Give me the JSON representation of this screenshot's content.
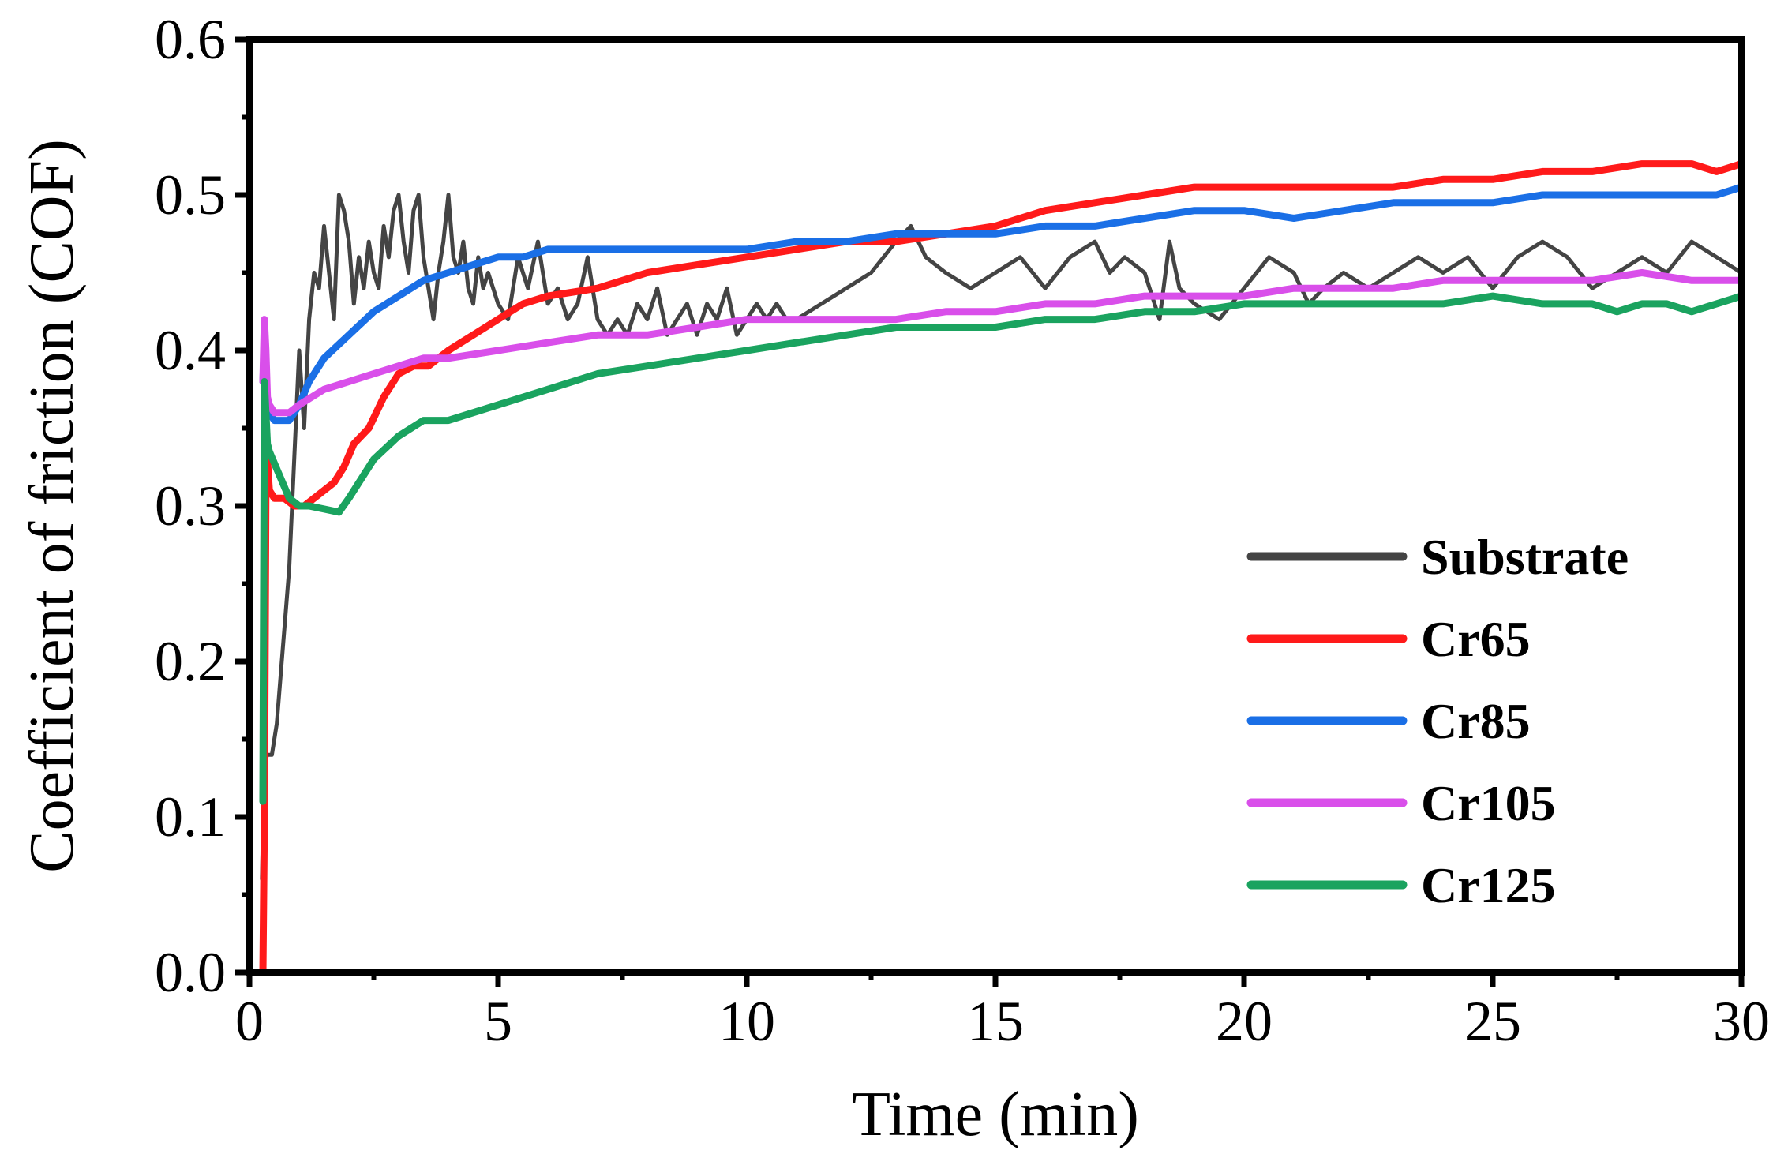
{
  "chart_data": {
    "type": "line",
    "title": "",
    "xlabel": "Time (min)",
    "ylabel": "Coefficient of friction (COF)",
    "xlim": [
      0,
      30
    ],
    "ylim": [
      0,
      0.6
    ],
    "xticks": [
      0,
      5,
      10,
      15,
      20,
      25,
      30
    ],
    "xtick_labels": [
      "0",
      "5",
      "10",
      "15",
      "20",
      "25",
      "30"
    ],
    "yticks": [
      0,
      0.1,
      0.2,
      0.3,
      0.4,
      0.5,
      0.6
    ],
    "ytick_labels": [
      "0.0",
      "0.1",
      "0.2",
      "0.3",
      "0.4",
      "0.5",
      "0.6"
    ],
    "grid": false,
    "legend_position": "bottom-right",
    "series": [
      {
        "name": "Substrate",
        "color": "#444444",
        "x": [
          0.25,
          0.3,
          0.35,
          0.45,
          0.55,
          0.65,
          0.8,
          0.9,
          1.0,
          1.1,
          1.2,
          1.3,
          1.4,
          1.5,
          1.6,
          1.7,
          1.8,
          1.9,
          2.0,
          2.1,
          2.2,
          2.3,
          2.4,
          2.5,
          2.6,
          2.7,
          2.8,
          2.9,
          3.0,
          3.1,
          3.2,
          3.3,
          3.4,
          3.5,
          3.6,
          3.7,
          3.8,
          3.9,
          4.0,
          4.1,
          4.2,
          4.3,
          4.4,
          4.5,
          4.6,
          4.7,
          4.8,
          5.0,
          5.2,
          5.4,
          5.6,
          5.8,
          6.0,
          6.2,
          6.4,
          6.6,
          6.8,
          7.0,
          7.2,
          7.4,
          7.6,
          7.8,
          8.0,
          8.2,
          8.4,
          8.6,
          8.8,
          9.0,
          9.2,
          9.4,
          9.6,
          9.8,
          10.0,
          10.2,
          10.4,
          10.6,
          10.8,
          11.0,
          11.5,
          12.0,
          12.5,
          13.0,
          13.3,
          13.6,
          14.0,
          14.5,
          15.0,
          15.5,
          16.0,
          16.5,
          17.0,
          17.3,
          17.6,
          18.0,
          18.3,
          18.5,
          18.7,
          19.0,
          19.5,
          20.0,
          20.5,
          21.0,
          21.3,
          21.6,
          22.0,
          22.5,
          23.0,
          23.5,
          24.0,
          24.5,
          25.0,
          25.5,
          26.0,
          26.5,
          27.0,
          27.5,
          28.0,
          28.5,
          29.0,
          29.5,
          30.0
        ],
        "values": [
          0.06,
          0.13,
          0.14,
          0.14,
          0.16,
          0.2,
          0.26,
          0.33,
          0.4,
          0.35,
          0.42,
          0.45,
          0.44,
          0.48,
          0.45,
          0.42,
          0.5,
          0.49,
          0.47,
          0.43,
          0.46,
          0.44,
          0.47,
          0.45,
          0.44,
          0.48,
          0.46,
          0.49,
          0.5,
          0.47,
          0.45,
          0.49,
          0.5,
          0.46,
          0.44,
          0.42,
          0.45,
          0.47,
          0.5,
          0.46,
          0.45,
          0.47,
          0.44,
          0.43,
          0.46,
          0.44,
          0.45,
          0.43,
          0.42,
          0.46,
          0.44,
          0.47,
          0.43,
          0.44,
          0.42,
          0.43,
          0.46,
          0.42,
          0.41,
          0.42,
          0.41,
          0.43,
          0.42,
          0.44,
          0.41,
          0.42,
          0.43,
          0.41,
          0.43,
          0.42,
          0.44,
          0.41,
          0.42,
          0.43,
          0.42,
          0.43,
          0.42,
          0.42,
          0.43,
          0.44,
          0.45,
          0.47,
          0.48,
          0.46,
          0.45,
          0.44,
          0.45,
          0.46,
          0.44,
          0.46,
          0.47,
          0.45,
          0.46,
          0.45,
          0.42,
          0.47,
          0.44,
          0.43,
          0.42,
          0.44,
          0.46,
          0.45,
          0.43,
          0.44,
          0.45,
          0.44,
          0.45,
          0.46,
          0.45,
          0.46,
          0.44,
          0.46,
          0.47,
          0.46,
          0.44,
          0.45,
          0.46,
          0.45,
          0.47,
          0.46,
          0.45
        ]
      },
      {
        "name": "Cr65",
        "color": "#ff1a1a",
        "x": [
          0.27,
          0.3,
          0.33,
          0.36,
          0.4,
          0.5,
          0.7,
          0.9,
          1.1,
          1.3,
          1.5,
          1.7,
          1.9,
          2.1,
          2.4,
          2.7,
          3.0,
          3.3,
          3.6,
          4.0,
          4.5,
          5.0,
          5.5,
          6.0,
          7.0,
          8.0,
          9.0,
          10.0,
          11.0,
          12.0,
          13.0,
          14.0,
          15.0,
          16.0,
          17.0,
          18.0,
          19.0,
          20.0,
          21.0,
          22.0,
          23.0,
          24.0,
          25.0,
          26.0,
          27.0,
          28.0,
          29.0,
          29.5,
          30.0
        ],
        "values": [
          0.0,
          0.1,
          0.31,
          0.33,
          0.31,
          0.305,
          0.305,
          0.3,
          0.3,
          0.305,
          0.31,
          0.315,
          0.325,
          0.34,
          0.35,
          0.37,
          0.385,
          0.39,
          0.39,
          0.4,
          0.41,
          0.42,
          0.43,
          0.435,
          0.44,
          0.45,
          0.455,
          0.46,
          0.465,
          0.47,
          0.47,
          0.475,
          0.48,
          0.49,
          0.495,
          0.5,
          0.505,
          0.505,
          0.505,
          0.505,
          0.505,
          0.51,
          0.51,
          0.515,
          0.515,
          0.52,
          0.52,
          0.515,
          0.52
        ]
      },
      {
        "name": "Cr85",
        "color": "#1a6fe6",
        "x": [
          0.27,
          0.3,
          0.35,
          0.4,
          0.5,
          0.6,
          0.7,
          0.8,
          0.9,
          1.0,
          1.2,
          1.5,
          2.0,
          2.5,
          3.0,
          3.5,
          4.0,
          4.5,
          5.0,
          5.5,
          6.0,
          7.0,
          8.0,
          9.0,
          10.0,
          11.0,
          12.0,
          13.0,
          14.0,
          15.0,
          16.0,
          17.0,
          18.0,
          19.0,
          20.0,
          21.0,
          22.0,
          23.0,
          24.0,
          25.0,
          26.0,
          27.0,
          28.0,
          29.0,
          29.5,
          30.0
        ],
        "values": [
          0.38,
          0.4,
          0.37,
          0.36,
          0.355,
          0.355,
          0.355,
          0.355,
          0.36,
          0.365,
          0.38,
          0.395,
          0.41,
          0.425,
          0.435,
          0.445,
          0.45,
          0.455,
          0.46,
          0.46,
          0.465,
          0.465,
          0.465,
          0.465,
          0.465,
          0.47,
          0.47,
          0.475,
          0.475,
          0.475,
          0.48,
          0.48,
          0.485,
          0.49,
          0.49,
          0.485,
          0.49,
          0.495,
          0.495,
          0.495,
          0.5,
          0.5,
          0.5,
          0.5,
          0.5,
          0.505
        ]
      },
      {
        "name": "Cr105",
        "color": "#d94fea",
        "x": [
          0.27,
          0.3,
          0.33,
          0.36,
          0.4,
          0.5,
          0.6,
          0.8,
          1.0,
          1.5,
          2.0,
          2.5,
          3.0,
          3.5,
          4.0,
          5.0,
          6.0,
          7.0,
          8.0,
          9.0,
          10.0,
          11.0,
          12.0,
          13.0,
          14.0,
          15.0,
          16.0,
          17.0,
          18.0,
          19.0,
          20.0,
          21.0,
          22.0,
          23.0,
          24.0,
          25.0,
          26.0,
          27.0,
          28.0,
          29.0,
          30.0
        ],
        "values": [
          0.38,
          0.42,
          0.4,
          0.37,
          0.365,
          0.36,
          0.36,
          0.36,
          0.365,
          0.375,
          0.38,
          0.385,
          0.39,
          0.395,
          0.395,
          0.4,
          0.405,
          0.41,
          0.41,
          0.415,
          0.42,
          0.42,
          0.42,
          0.42,
          0.425,
          0.425,
          0.43,
          0.43,
          0.435,
          0.435,
          0.435,
          0.44,
          0.44,
          0.44,
          0.445,
          0.445,
          0.445,
          0.445,
          0.45,
          0.445,
          0.445
        ]
      },
      {
        "name": "Cr125",
        "color": "#1aa35f",
        "x": [
          0.27,
          0.3,
          0.33,
          0.36,
          0.4,
          0.6,
          0.8,
          1.0,
          1.2,
          1.5,
          1.8,
          2.0,
          2.5,
          3.0,
          3.5,
          4.0,
          5.0,
          6.0,
          7.0,
          8.0,
          9.0,
          10.0,
          11.0,
          12.0,
          13.0,
          14.0,
          15.0,
          16.0,
          17.0,
          18.0,
          19.0,
          20.0,
          21.0,
          22.0,
          23.0,
          24.0,
          25.0,
          26.0,
          27.0,
          27.5,
          28.0,
          28.5,
          29.0,
          29.5,
          30.0
        ],
        "values": [
          0.11,
          0.38,
          0.36,
          0.34,
          0.335,
          0.32,
          0.305,
          0.3,
          0.3,
          0.298,
          0.296,
          0.305,
          0.33,
          0.345,
          0.355,
          0.355,
          0.365,
          0.375,
          0.385,
          0.39,
          0.395,
          0.4,
          0.405,
          0.41,
          0.415,
          0.415,
          0.415,
          0.42,
          0.42,
          0.425,
          0.425,
          0.43,
          0.43,
          0.43,
          0.43,
          0.43,
          0.435,
          0.43,
          0.43,
          0.425,
          0.43,
          0.43,
          0.425,
          0.43,
          0.435
        ]
      }
    ]
  }
}
